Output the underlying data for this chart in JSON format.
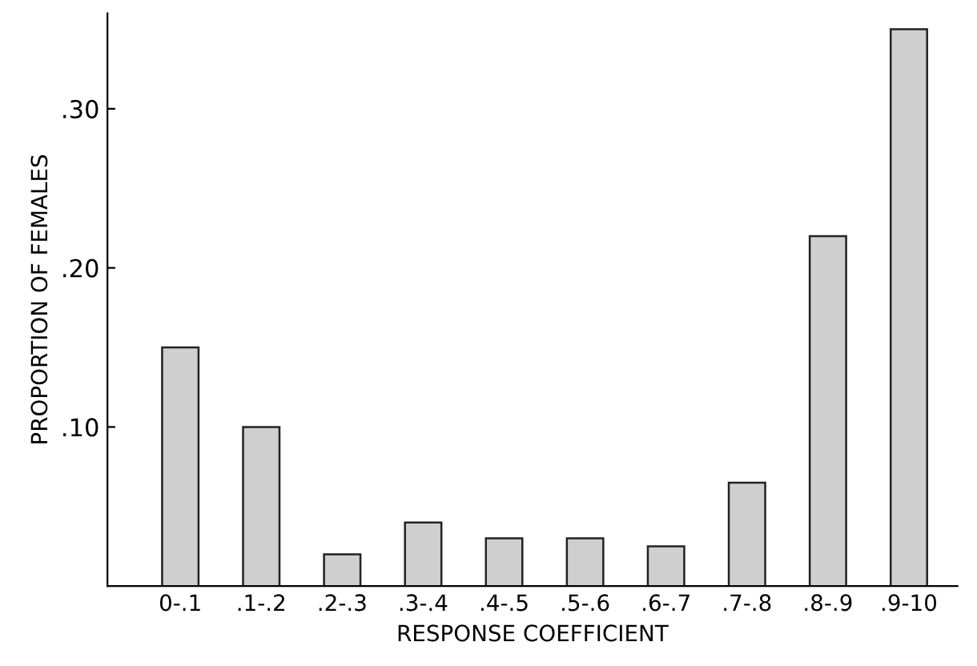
{
  "chart_data": {
    "type": "bar",
    "xlabel": "RESPONSE COEFFICIENT",
    "ylabel": "PROPORTION OF FEMALES",
    "categories": [
      "0-.1",
      ".1-.2",
      ".2-.3",
      ".3-.4",
      ".4-.5",
      ".5-.6",
      ".6-.7",
      ".7-.8",
      ".8-.9",
      ".9-10"
    ],
    "values": [
      0.15,
      0.1,
      0.02,
      0.04,
      0.03,
      0.03,
      0.025,
      0.065,
      0.22,
      0.35
    ],
    "color": "#cfcfcf",
    "ylim": [
      0,
      0.36
    ],
    "yticks": [
      {
        "value": 0.1,
        "label": ".10"
      },
      {
        "value": 0.2,
        "label": ".20"
      },
      {
        "value": 0.3,
        "label": ".30"
      }
    ],
    "grid": false
  }
}
